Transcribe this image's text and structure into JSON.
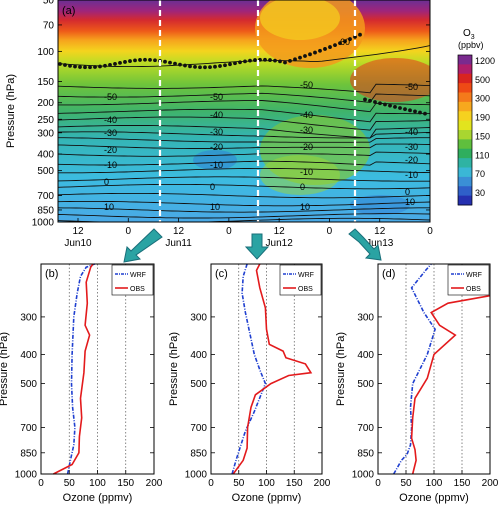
{
  "chart_data": [
    {
      "type": "heatmap",
      "panel": "(a)",
      "ylabel": "Pressure (hPa)",
      "yticks": [
        50,
        70,
        100,
        150,
        200,
        250,
        300,
        400,
        500,
        700,
        850,
        1000
      ],
      "ylim": [
        1000,
        50
      ],
      "y_scale": "log",
      "xticks": [
        {
          "hour": "12",
          "day": "Jun10"
        },
        {
          "hour": "0",
          "day": ""
        },
        {
          "hour": "12",
          "day": "Jun11"
        },
        {
          "hour": "0",
          "day": ""
        },
        {
          "hour": "12",
          "day": "Jun12"
        },
        {
          "hour": "0",
          "day": ""
        },
        {
          "hour": "12",
          "day": "Jun13"
        },
        {
          "hour": "0",
          "day": ""
        }
      ],
      "colorbar": {
        "title_main": "O",
        "title_sub": "3",
        "units": "(ppbv)",
        "ticks": [
          "1200",
          "500",
          "300",
          "190",
          "150",
          "110",
          "70",
          "30"
        ],
        "colors": [
          "#7a2a8e",
          "#b01e6a",
          "#d9241f",
          "#ee4a15",
          "#f47a1b",
          "#f7a81e",
          "#f6d11f",
          "#e2e41e",
          "#a9d630",
          "#5fbf3d",
          "#2fae5e",
          "#2fb3a3",
          "#3ab7d6",
          "#3a8fd6",
          "#2f5fc9",
          "#2530b0"
        ]
      },
      "contour_labels": [
        "60",
        "-50",
        "-40",
        "-30",
        "-20",
        "-10",
        "0",
        "10",
        "-50",
        "-40",
        "-30",
        "-20",
        "-10",
        "0",
        "10",
        "-50",
        "-40",
        "-30",
        "-20",
        "-10",
        "0",
        "10",
        "-50",
        "-40",
        "-30",
        "-20",
        "-10",
        "0",
        "10"
      ],
      "tropopause_dots": true
    },
    {
      "type": "line",
      "panel": "(b)",
      "xlabel": "Ozone (ppmv)",
      "ylabel": "Pressure (hPa)",
      "xlim": [
        0,
        200
      ],
      "xticks": [
        0,
        50,
        100,
        150,
        200
      ],
      "ylim": [
        1000,
        200
      ],
      "yticks": [
        300,
        400,
        500,
        700,
        850,
        1000
      ],
      "series": [
        {
          "name": "WRF",
          "color": "#1f3fd0",
          "style": "dashed-dot",
          "points": [
            [
              47,
              1000
            ],
            [
              52,
              900
            ],
            [
              58,
              800
            ],
            [
              60,
              700
            ],
            [
              56,
              600
            ],
            [
              54,
              500
            ],
            [
              55,
              400
            ],
            [
              58,
              300
            ],
            [
              64,
              250
            ],
            [
              70,
              220
            ],
            [
              80,
              205
            ],
            [
              95,
              200
            ]
          ]
        },
        {
          "name": "OBS",
          "color": "#e31a1c",
          "style": "solid",
          "points": [
            [
              22,
              1000
            ],
            [
              55,
              930
            ],
            [
              67,
              850
            ],
            [
              68,
              750
            ],
            [
              72,
              650
            ],
            [
              70,
              560
            ],
            [
              76,
              460
            ],
            [
              78,
              390
            ],
            [
              86,
              345
            ],
            [
              78,
              320
            ],
            [
              82,
              270
            ],
            [
              80,
              230
            ],
            [
              88,
              205
            ],
            [
              92,
              200
            ]
          ]
        }
      ]
    },
    {
      "type": "line",
      "panel": "(c)",
      "xlabel": "Ozone (ppmv)",
      "ylabel": "Pressure (hPa)",
      "xlim": [
        0,
        200
      ],
      "xticks": [
        0,
        50,
        100,
        150,
        200
      ],
      "ylim": [
        1000,
        200
      ],
      "yticks": [
        300,
        400,
        500,
        700,
        850,
        1000
      ],
      "series": [
        {
          "name": "WRF",
          "color": "#1f3fd0",
          "style": "dashed-dot",
          "points": [
            [
              38,
              1000
            ],
            [
              45,
              900
            ],
            [
              52,
              820
            ],
            [
              62,
              720
            ],
            [
              78,
              620
            ],
            [
              98,
              500
            ],
            [
              88,
              450
            ],
            [
              78,
              400
            ],
            [
              70,
              340
            ],
            [
              62,
              290
            ],
            [
              56,
              250
            ],
            [
              58,
              220
            ],
            [
              65,
              200
            ]
          ]
        },
        {
          "name": "OBS",
          "color": "#e31a1c",
          "style": "solid",
          "points": [
            [
              40,
              1000
            ],
            [
              58,
              900
            ],
            [
              65,
              820
            ],
            [
              66,
              700
            ],
            [
              72,
              600
            ],
            [
              80,
              545
            ],
            [
              108,
              500
            ],
            [
              140,
              470
            ],
            [
              180,
              460
            ],
            [
              170,
              430
            ],
            [
              135,
              410
            ],
            [
              130,
              390
            ],
            [
              105,
              370
            ],
            [
              100,
              330
            ],
            [
              98,
              280
            ],
            [
              88,
              240
            ],
            [
              82,
              210
            ],
            [
              88,
              200
            ]
          ]
        }
      ]
    },
    {
      "type": "line",
      "panel": "(d)",
      "xlabel": "Ozone (ppmv)",
      "ylabel": "Pressure (hPa)",
      "xlim": [
        0,
        200
      ],
      "xticks": [
        0,
        50,
        100,
        150,
        200
      ],
      "ylim": [
        1000,
        200
      ],
      "yticks": [
        300,
        400,
        500,
        700,
        850,
        1000
      ],
      "series": [
        {
          "name": "WRF",
          "color": "#1f3fd0",
          "style": "dashed-dot",
          "points": [
            [
              28,
              1000
            ],
            [
              42,
              900
            ],
            [
              52,
              860
            ],
            [
              58,
              800
            ],
            [
              60,
              700
            ],
            [
              58,
              600
            ],
            [
              62,
              500
            ],
            [
              88,
              400
            ],
            [
              102,
              330
            ],
            [
              82,
              290
            ],
            [
              60,
              240
            ],
            [
              85,
              210
            ],
            [
              95,
              200
            ]
          ]
        },
        {
          "name": "OBS",
          "color": "#e31a1c",
          "style": "solid",
          "points": [
            [
              62,
              1000
            ],
            [
              68,
              900
            ],
            [
              66,
              830
            ],
            [
              60,
              760
            ],
            [
              62,
              650
            ],
            [
              66,
              560
            ],
            [
              88,
              480
            ],
            [
              100,
              400
            ],
            [
              138,
              345
            ],
            [
              110,
              320
            ],
            [
              95,
              290
            ],
            [
              125,
              270
            ],
            [
              200,
              255
            ]
          ]
        }
      ]
    }
  ]
}
